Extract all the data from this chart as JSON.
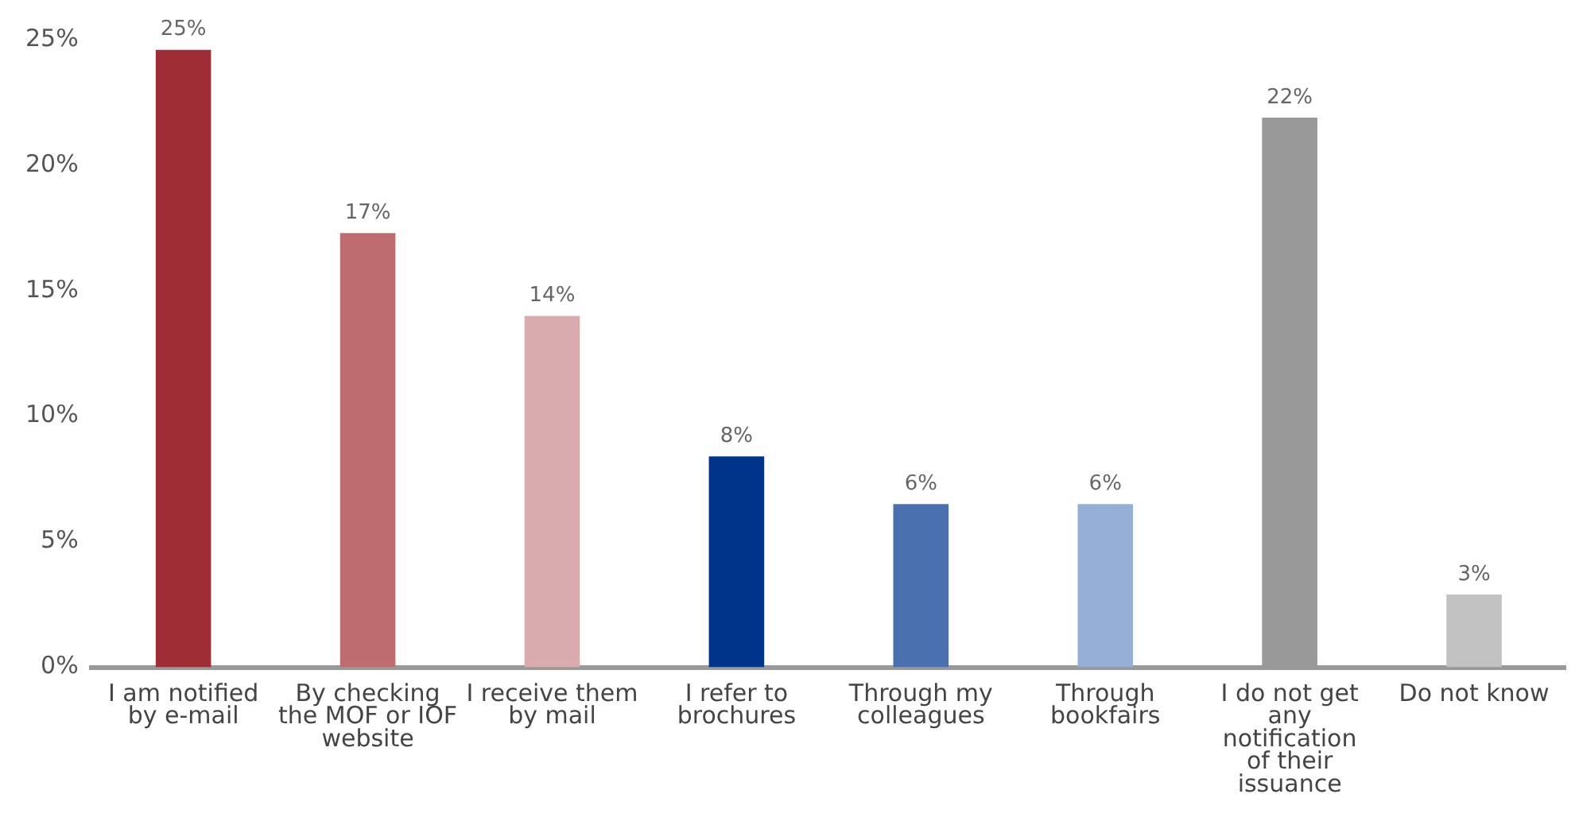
{
  "chart_data": {
    "type": "bar",
    "categories": [
      "I am notified by e-mail",
      "By checking the MOF or IOF website",
      "I receive them by mail",
      "I refer to brochures",
      "Through my colleagues",
      "Through bookfairs",
      "I do not get any notification of their issuance",
      "Do not know"
    ],
    "values": [
      24.6,
      17.3,
      14.0,
      8.4,
      6.5,
      6.5,
      21.9,
      2.9
    ],
    "value_labels": [
      "25%",
      "17%",
      "14%",
      "8%",
      "6%",
      "6%",
      "22%",
      "3%"
    ],
    "colors": [
      "#9e2d35",
      "#be6c70",
      "#d9abae",
      "#00348a",
      "#4a70b0",
      "#95afd6",
      "#999999",
      "#c2c2c2"
    ],
    "ylim": [
      0,
      25
    ],
    "yticks": [
      {
        "value": 0,
        "label": "0%"
      },
      {
        "value": 5,
        "label": "5%"
      },
      {
        "value": 10,
        "label": "10%"
      },
      {
        "value": 15,
        "label": "15%"
      },
      {
        "value": 20,
        "label": "20%"
      },
      {
        "value": 25,
        "label": "25%"
      }
    ],
    "grid": false,
    "legend": false
  }
}
